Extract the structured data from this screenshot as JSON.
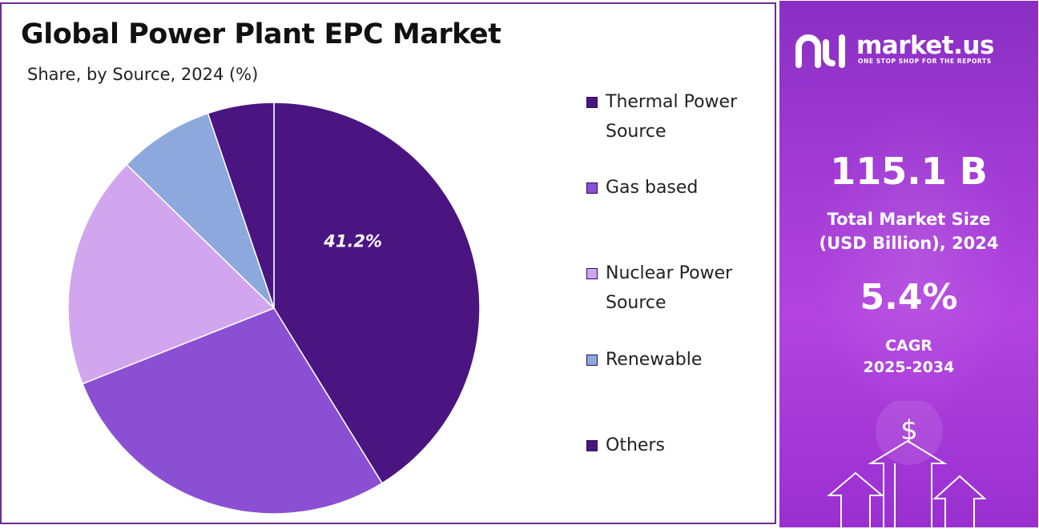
{
  "header": {
    "title": "Global Power Plant EPC Market",
    "subtitle": "Share, by Source, 2024 (%)"
  },
  "chart_data": {
    "type": "pie",
    "categories": [
      "Thermal Power Source",
      "Gas based",
      "Nuclear Power Source",
      "Renewable",
      "Others"
    ],
    "values": [
      41.2,
      27.8,
      18.3,
      7.5,
      5.2
    ],
    "data_labels": [
      "41.2%",
      "",
      "",
      "",
      ""
    ],
    "start_angle_deg": 0,
    "direction": "clockwise",
    "legend_position": "right",
    "colors": [
      "#4a1580",
      "#8b4fd4",
      "#d2a6ef",
      "#8ca8dc",
      "#4a1580"
    ]
  },
  "legend": {
    "items": [
      {
        "label_line1": "Thermal Power",
        "label_line2": "Source",
        "color": "#4a1580"
      },
      {
        "label_line1": "Gas based",
        "label_line2": "",
        "color": "#8b4fd4"
      },
      {
        "label_line1": "Nuclear Power",
        "label_line2": "Source",
        "color": "#d2a6ef"
      },
      {
        "label_line1": "Renewable",
        "label_line2": "",
        "color": "#8ca8dc"
      },
      {
        "label_line1": "Others",
        "label_line2": "",
        "color": "#4a1580"
      }
    ]
  },
  "sidebar": {
    "brand_name": "market.us",
    "brand_tagline": "ONE STOP SHOP FOR THE REPORTS",
    "logo_icon": "market-us-logo-icon",
    "market_size_value": "115.1 B",
    "market_size_label_line1": "Total Market Size",
    "market_size_label_line2": "(USD Billion), 2024",
    "cagr_value": "5.4%",
    "cagr_label_line1": "CAGR",
    "cagr_label_line2": "2025-2034",
    "decor_icon": "dollar-arrows-icon",
    "dollar_glyph": "$",
    "accent_color": "#a33bd6"
  }
}
